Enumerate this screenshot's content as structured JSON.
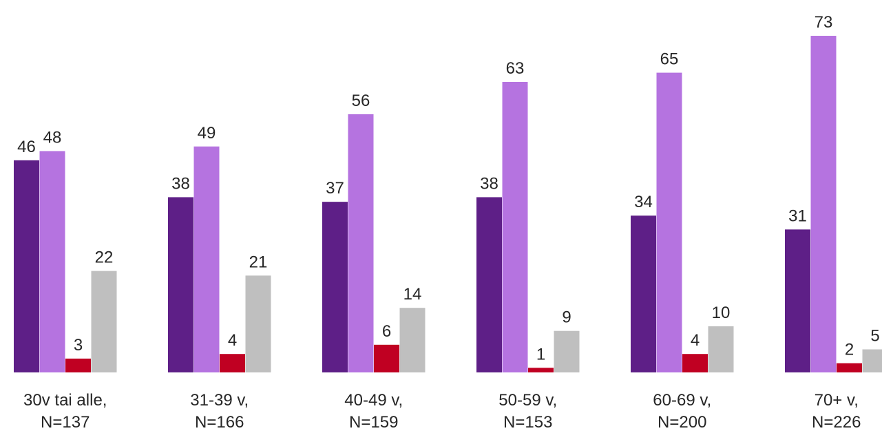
{
  "chart_data": {
    "type": "bar",
    "categories": [
      [
        "30v tai alle,",
        "N=137"
      ],
      [
        "31-39 v,",
        "N=166"
      ],
      [
        "40-49 v,",
        "N=159"
      ],
      [
        "50-59 v,",
        "N=153"
      ],
      [
        "60-69 v,",
        "N=200"
      ],
      [
        "70+ v,",
        "N=226"
      ]
    ],
    "series": [
      {
        "color": "#5E1F87",
        "values": [
          46,
          38,
          37,
          38,
          34,
          31
        ]
      },
      {
        "color": "#B573E0",
        "values": [
          48,
          49,
          56,
          63,
          65,
          73
        ]
      },
      {
        "color": "#C00022",
        "values": [
          3,
          4,
          6,
          1,
          4,
          2
        ]
      },
      {
        "color": "#BFBFBF",
        "values": [
          22,
          21,
          14,
          9,
          10,
          5
        ]
      }
    ],
    "ylim": [
      0,
      73
    ],
    "grid": false,
    "legend": "none"
  }
}
